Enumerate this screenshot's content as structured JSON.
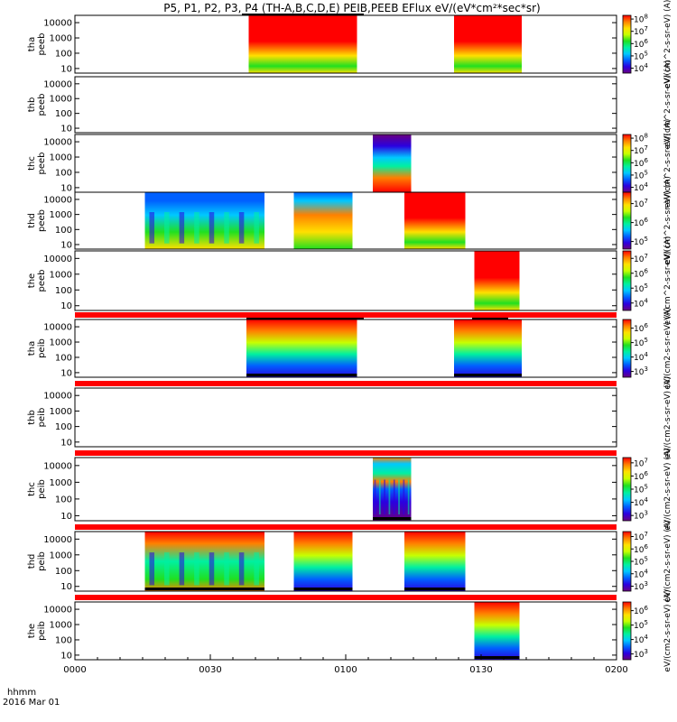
{
  "title": "P5, P1, P2, P3, P4 (TH-A,B,C,D,E) PEIB,PEEB EFlux eV/(eV*cm²*sec*sr)",
  "chart_data": {
    "type": "heatmap",
    "title": "P5, P1, P2, P3, P4 (TH-A,B,C,D,E) PEIB,PEEB EFlux eV/(eV*cm²*sec*sr)",
    "x_axis": {
      "unit_label": "hhmm",
      "date_label": "2016 Mar 01",
      "range_minutes": [
        0,
        120
      ],
      "ticks": [
        {
          "minute": 0,
          "label": "0000"
        },
        {
          "minute": 30,
          "label": "0030"
        },
        {
          "minute": 60,
          "label": "0100"
        },
        {
          "minute": 90,
          "label": "0130"
        },
        {
          "minute": 120,
          "label": "0200"
        }
      ]
    },
    "y_axis": {
      "scale": "log",
      "range": [
        5,
        30000
      ],
      "ticks": [
        {
          "value": 10,
          "label": "10"
        },
        {
          "value": 100,
          "label": "100"
        },
        {
          "value": 1000,
          "label": "1000"
        },
        {
          "value": 10000,
          "label": "10000"
        }
      ]
    },
    "colormap": [
      "#6a0080",
      "#2b00e0",
      "#0060ff",
      "#00c8ff",
      "#00f0a0",
      "#20e020",
      "#c8ff00",
      "#ffe000",
      "#ff8000",
      "#ff0000"
    ],
    "panels": [
      {
        "id": "tha-peeb",
        "ylabel": [
          "tha",
          "peeb"
        ],
        "colorbar": {
          "exponents": [
            "4",
            "5",
            "6",
            "7",
            "8"
          ],
          "min_exp": 3.6,
          "max_exp": 8.3
        },
        "colorbar_label": "eV/(cm^2-s-sr-eV) (A)",
        "intervals": [
          {
            "start": 38.5,
            "end": 62.5,
            "style": "electron-dense"
          },
          {
            "start": 84.0,
            "end": 99.0,
            "style": "electron-dense"
          }
        ],
        "over_marks": [
          {
            "start": 37.0,
            "end": 64.0
          }
        ]
      },
      {
        "id": "thb-peeb",
        "ylabel": [
          "thb",
          "peeb"
        ],
        "colorbar": null,
        "colorbar_label": "eV/(cm^2-s-sr-eV) (A)",
        "intervals": []
      },
      {
        "id": "thc-peeb",
        "ylabel": [
          "thc",
          "peeb"
        ],
        "colorbar": {
          "exponents": [
            "4",
            "5",
            "6",
            "7",
            "8"
          ],
          "min_exp": 3.6,
          "max_exp": 8.3
        },
        "colorbar_label": "eV/(cm^2-s-sr-eV) (A)",
        "intervals": [
          {
            "start": 66.0,
            "end": 74.5,
            "style": "electron-upper-dark"
          }
        ]
      },
      {
        "id": "thd-peeb",
        "ylabel": [
          "thd",
          "peeb"
        ],
        "colorbar": {
          "exponents": [
            "5",
            "6",
            "7"
          ],
          "min_exp": 4.6,
          "max_exp": 7.6
        },
        "colorbar_label": "eV/(cm^2-s-sr-eV) (A)",
        "intervals": [
          {
            "start": 15.5,
            "end": 42.0,
            "style": "electron-patchy"
          },
          {
            "start": 48.5,
            "end": 61.5,
            "style": "electron-mid"
          },
          {
            "start": 73.0,
            "end": 86.5,
            "style": "electron-dense"
          }
        ]
      },
      {
        "id": "the-peeb",
        "ylabel": [
          "the",
          "peeb"
        ],
        "colorbar": {
          "exponents": [
            "4",
            "5",
            "6",
            "7"
          ],
          "min_exp": 3.5,
          "max_exp": 7.5
        },
        "colorbar_label": "eV/(cm^2-s-sr-eV) (A)",
        "intervals": [
          {
            "start": 88.5,
            "end": 98.5,
            "style": "electron-dense"
          }
        ]
      },
      {
        "id": "tha-peib",
        "ylabel": [
          "tha",
          "peib"
        ],
        "colorbar": {
          "exponents": [
            "3",
            "4",
            "5",
            "6"
          ],
          "min_exp": 2.6,
          "max_exp": 6.6
        },
        "colorbar_label": "eV/(cm2-s-sr-eV) (A)",
        "intervals": [
          {
            "start": 38.0,
            "end": 62.5,
            "style": "ion"
          },
          {
            "start": 84.0,
            "end": 99.0,
            "style": "ion"
          }
        ],
        "over_marks": [
          {
            "start": 38.0,
            "end": 64.0
          },
          {
            "start": 88.0,
            "end": 96.0
          }
        ]
      },
      {
        "id": "thb-peib",
        "ylabel": [
          "thb",
          "peib"
        ],
        "colorbar": null,
        "colorbar_label": "eV/(cm2-s-sr-eV) (A)",
        "intervals": []
      },
      {
        "id": "thc-peib",
        "ylabel": [
          "thc",
          "peib"
        ],
        "colorbar": {
          "exponents": [
            "3",
            "4",
            "5",
            "6",
            "7"
          ],
          "min_exp": 2.6,
          "max_exp": 7.4
        },
        "colorbar_label": "eV/(cm2-s-sr-eV) (A)",
        "intervals": [
          {
            "start": 66.0,
            "end": 74.5,
            "style": "ion-sparse"
          }
        ]
      },
      {
        "id": "thd-peib",
        "ylabel": [
          "thd",
          "peib"
        ],
        "colorbar": {
          "exponents": [
            "3",
            "4",
            "5",
            "6",
            "7"
          ],
          "min_exp": 2.6,
          "max_exp": 7.4
        },
        "colorbar_label": "eV/(cm2-s-sr-eV) (A)",
        "intervals": [
          {
            "start": 15.5,
            "end": 42.0,
            "style": "ion-patchy"
          },
          {
            "start": 48.5,
            "end": 61.5,
            "style": "ion"
          },
          {
            "start": 73.0,
            "end": 86.5,
            "style": "ion"
          }
        ]
      },
      {
        "id": "the-peib",
        "ylabel": [
          "the",
          "peib"
        ],
        "colorbar": {
          "exponents": [
            "3",
            "4",
            "5",
            "6"
          ],
          "min_exp": 2.6,
          "max_exp": 6.6
        },
        "colorbar_label": "eV/(cm2-s-sr-eV) (A)",
        "intervals": [
          {
            "start": 88.5,
            "end": 98.5,
            "style": "ion"
          }
        ]
      }
    ],
    "separator_color": "#ff0000"
  }
}
